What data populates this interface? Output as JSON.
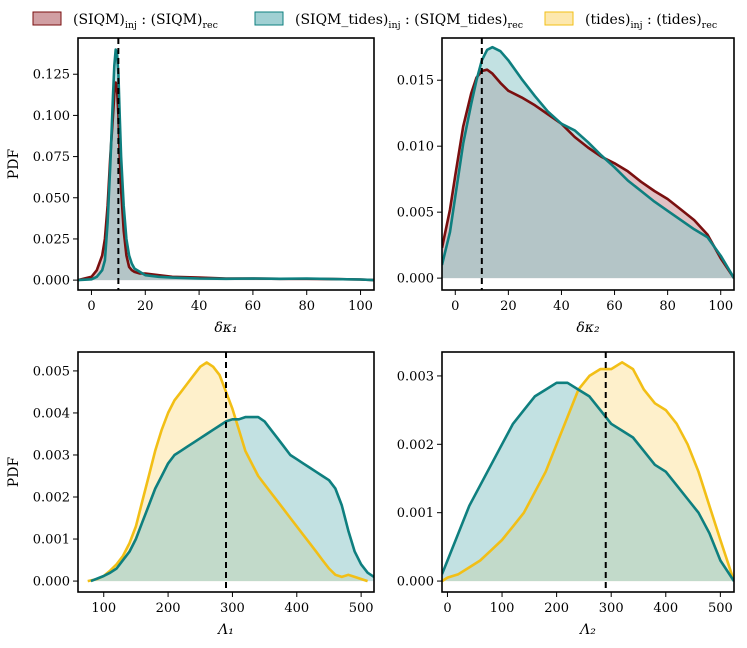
{
  "chart_data": {
    "type": "area",
    "legend": {
      "placement": "top",
      "entries": [
        {
          "key": "siqm",
          "main": "(SIQM)",
          "sub1": "inj",
          "sep": " : ",
          "main2": "(SIQM)",
          "sub2": "rec",
          "line_color": "#7a0f0f",
          "fill_color": "#c98e93"
        },
        {
          "key": "siqm_tides",
          "main": "(SIQM_tides)",
          "sub1": "inj",
          "sep": " : ",
          "main2": "(SIQM_tides)",
          "sub2": "rec",
          "line_color": "#0e7f7f",
          "fill_color": "#8fc8cb"
        },
        {
          "key": "tides",
          "main": "(tides)",
          "sub1": "inj",
          "sep": " : ",
          "main2": "(tides)",
          "sub2": "rec",
          "line_color": "#f2bf16",
          "fill_color": "#fde4a0"
        }
      ]
    },
    "panels": [
      {
        "id": "dk1",
        "xlabel": "δκ₁",
        "ylabel": "PDF",
        "xlim": [
          -5,
          105
        ],
        "ylim": [
          -0.006,
          0.147
        ],
        "xticks": [
          0,
          20,
          40,
          60,
          80,
          100
        ],
        "yticks": [
          0.0,
          0.025,
          0.05,
          0.075,
          0.1,
          0.125
        ],
        "ytick_labels": [
          "0.000",
          "0.025",
          "0.050",
          "0.075",
          "0.100",
          "0.125"
        ],
        "truth_x": 10,
        "series": [
          {
            "name": "siqm",
            "x": [
              -5,
              0,
              2,
              4,
              5,
              6,
              7,
              8,
              8.5,
              9,
              9.5,
              10,
              10.5,
              11,
              12,
              13,
              14,
              15,
              16,
              18,
              20,
              25,
              30,
              40,
              50,
              60,
              70,
              80,
              90,
              100,
              105
            ],
            "y": [
              0,
              0.002,
              0.006,
              0.015,
              0.025,
              0.045,
              0.075,
              0.1,
              0.113,
              0.12,
              0.117,
              0.1,
              0.075,
              0.055,
              0.03,
              0.015,
              0.008,
              0.006,
              0.005,
              0.004,
              0.004,
              0.003,
              0.002,
              0.0015,
              0.001,
              0.001,
              0.0008,
              0.0008,
              0.0006,
              0.0004,
              0
            ]
          },
          {
            "name": "siqm_tides",
            "x": [
              -5,
              0,
              2,
              4,
              5,
              6,
              7,
              8,
              8.5,
              9,
              9.5,
              10,
              10.5,
              11,
              12,
              13,
              14,
              15,
              16,
              18,
              20,
              25,
              30,
              40,
              50,
              60,
              70,
              80,
              90,
              100,
              105
            ],
            "y": [
              0,
              0.0005,
              0.002,
              0.006,
              0.012,
              0.035,
              0.07,
              0.112,
              0.13,
              0.14,
              0.138,
              0.125,
              0.1,
              0.075,
              0.045,
              0.025,
              0.015,
              0.01,
              0.007,
              0.005,
              0.003,
              0.002,
              0.0015,
              0.001,
              0.0008,
              0.001,
              0.0008,
              0.001,
              0.0006,
              0.0004,
              0
            ]
          }
        ]
      },
      {
        "id": "dk2",
        "xlabel": "δκ₂",
        "ylabel": "",
        "xlim": [
          -5,
          105
        ],
        "ylim": [
          -0.0009,
          0.0182
        ],
        "xticks": [
          0,
          20,
          40,
          60,
          80,
          100
        ],
        "yticks": [
          0.0,
          0.005,
          0.01,
          0.015
        ],
        "ytick_labels": [
          "0.000",
          "0.005",
          "0.010",
          "0.015"
        ],
        "truth_x": 10,
        "series": [
          {
            "name": "siqm",
            "x": [
              -5,
              -2,
              0,
              3,
              6,
              8,
              10,
              12,
              14,
              17,
              20,
              25,
              30,
              35,
              40,
              45,
              50,
              55,
              60,
              65,
              70,
              75,
              80,
              85,
              90,
              95,
              100,
              105
            ],
            "y": [
              0.0023,
              0.0052,
              0.0078,
              0.0115,
              0.014,
              0.0152,
              0.0157,
              0.0158,
              0.0155,
              0.0148,
              0.0142,
              0.0137,
              0.0131,
              0.0124,
              0.0117,
              0.0107,
              0.0099,
              0.0092,
              0.0087,
              0.0081,
              0.0073,
              0.0066,
              0.006,
              0.0052,
              0.0044,
              0.0033,
              0.0015,
              0
            ]
          },
          {
            "name": "siqm_tides",
            "x": [
              -5,
              -2,
              0,
              3,
              6,
              8,
              10,
              12,
              14,
              17,
              20,
              25,
              30,
              35,
              40,
              45,
              50,
              55,
              60,
              65,
              70,
              75,
              80,
              85,
              90,
              95,
              100,
              105
            ],
            "y": [
              0.001,
              0.0035,
              0.0062,
              0.0102,
              0.0132,
              0.015,
              0.0165,
              0.0173,
              0.0175,
              0.0172,
              0.0165,
              0.0151,
              0.0138,
              0.0126,
              0.0117,
              0.0112,
              0.0103,
              0.0093,
              0.0084,
              0.0074,
              0.0066,
              0.0058,
              0.0051,
              0.0044,
              0.0037,
              0.0031,
              0.0017,
              0
            ]
          }
        ]
      },
      {
        "id": "L1",
        "xlabel": "Λ₁",
        "ylabel": "PDF",
        "xlim": [
          60,
          520
        ],
        "ylim": [
          -0.00026,
          0.00545
        ],
        "xticks": [
          100,
          200,
          300,
          400,
          500
        ],
        "yticks": [
          0.0,
          0.001,
          0.002,
          0.003,
          0.004,
          0.005
        ],
        "ytick_labels": [
          "0.000",
          "0.001",
          "0.002",
          "0.003",
          "0.004",
          "0.005"
        ],
        "truth_x": 290,
        "series": [
          {
            "name": "tides",
            "x": [
              75,
              90,
              100,
              110,
              120,
              130,
              140,
              150,
              160,
              170,
              180,
              190,
              200,
              210,
              220,
              230,
              240,
              250,
              260,
              270,
              280,
              290,
              300,
              310,
              320,
              330,
              340,
              350,
              360,
              370,
              380,
              390,
              400,
              410,
              420,
              430,
              440,
              450,
              460,
              470,
              480,
              490,
              500,
              510
            ],
            "y": [
              0,
              5e-05,
              0.00012,
              0.00025,
              0.0004,
              0.0006,
              0.0009,
              0.0013,
              0.0019,
              0.0025,
              0.0031,
              0.0036,
              0.004,
              0.0043,
              0.0045,
              0.0047,
              0.0049,
              0.0051,
              0.0052,
              0.0051,
              0.0049,
              0.0045,
              0.0041,
              0.0036,
              0.0031,
              0.0028,
              0.0025,
              0.0023,
              0.0021,
              0.0019,
              0.0017,
              0.0015,
              0.0013,
              0.0011,
              0.0009,
              0.0007,
              0.0005,
              0.0003,
              0.00015,
              0.0001,
              0.00015,
              0.0001,
              5e-05,
              0
            ]
          },
          {
            "name": "siqm_tides",
            "x": [
              80,
              100,
              110,
              120,
              130,
              140,
              150,
              160,
              170,
              180,
              190,
              200,
              210,
              220,
              230,
              240,
              250,
              260,
              270,
              280,
              290,
              300,
              310,
              320,
              330,
              340,
              350,
              360,
              370,
              380,
              390,
              400,
              410,
              420,
              430,
              440,
              450,
              460,
              470,
              480,
              490,
              500,
              510,
              520
            ],
            "y": [
              0,
              0.00012,
              0.0002,
              0.0003,
              0.0005,
              0.0007,
              0.001,
              0.0014,
              0.0018,
              0.0022,
              0.0025,
              0.0028,
              0.003,
              0.0031,
              0.0032,
              0.0033,
              0.0034,
              0.0035,
              0.0036,
              0.0037,
              0.0038,
              0.00385,
              0.00385,
              0.0039,
              0.0039,
              0.0039,
              0.0038,
              0.0036,
              0.0034,
              0.0032,
              0.003,
              0.0029,
              0.0028,
              0.0027,
              0.0026,
              0.0025,
              0.0024,
              0.0022,
              0.0018,
              0.0012,
              0.0007,
              0.0004,
              0.0002,
              0.0001
            ]
          }
        ]
      },
      {
        "id": "L2",
        "xlabel": "Λ₂",
        "ylabel": "",
        "xlim": [
          -10,
          525
        ],
        "ylim": [
          -0.00016,
          0.00335
        ],
        "xticks": [
          0,
          100,
          200,
          300,
          400,
          500
        ],
        "yticks": [
          0.0,
          0.001,
          0.002,
          0.003
        ],
        "ytick_labels": [
          "0.000",
          "0.001",
          "0.002",
          "0.003"
        ],
        "truth_x": 290,
        "series": [
          {
            "name": "tides",
            "x": [
              -10,
              0,
              20,
              40,
              60,
              80,
              100,
              120,
              140,
              160,
              180,
              200,
              220,
              240,
              260,
              280,
              300,
              320,
              340,
              360,
              380,
              400,
              420,
              440,
              460,
              480,
              500,
              525
            ],
            "y": [
              0,
              5e-05,
              0.0001,
              0.0002,
              0.0003,
              0.00045,
              0.0006,
              0.0008,
              0.001,
              0.0013,
              0.0016,
              0.002,
              0.0024,
              0.0028,
              0.003,
              0.0031,
              0.0031,
              0.0032,
              0.0031,
              0.0028,
              0.0026,
              0.0025,
              0.0023,
              0.002,
              0.0016,
              0.0011,
              0.0006,
              0
            ]
          },
          {
            "name": "siqm_tides",
            "x": [
              -10,
              0,
              20,
              40,
              60,
              80,
              100,
              120,
              140,
              160,
              180,
              200,
              220,
              240,
              260,
              280,
              300,
              320,
              340,
              360,
              380,
              400,
              420,
              440,
              460,
              480,
              500,
              525
            ],
            "y": [
              0.0001,
              0.0003,
              0.0007,
              0.0011,
              0.0014,
              0.0017,
              0.002,
              0.0023,
              0.0025,
              0.0027,
              0.0028,
              0.0029,
              0.0029,
              0.0028,
              0.0027,
              0.0025,
              0.0023,
              0.0022,
              0.0021,
              0.0019,
              0.0017,
              0.0016,
              0.0014,
              0.0012,
              0.001,
              0.0007,
              0.0003,
              0
            ]
          }
        ]
      }
    ]
  }
}
